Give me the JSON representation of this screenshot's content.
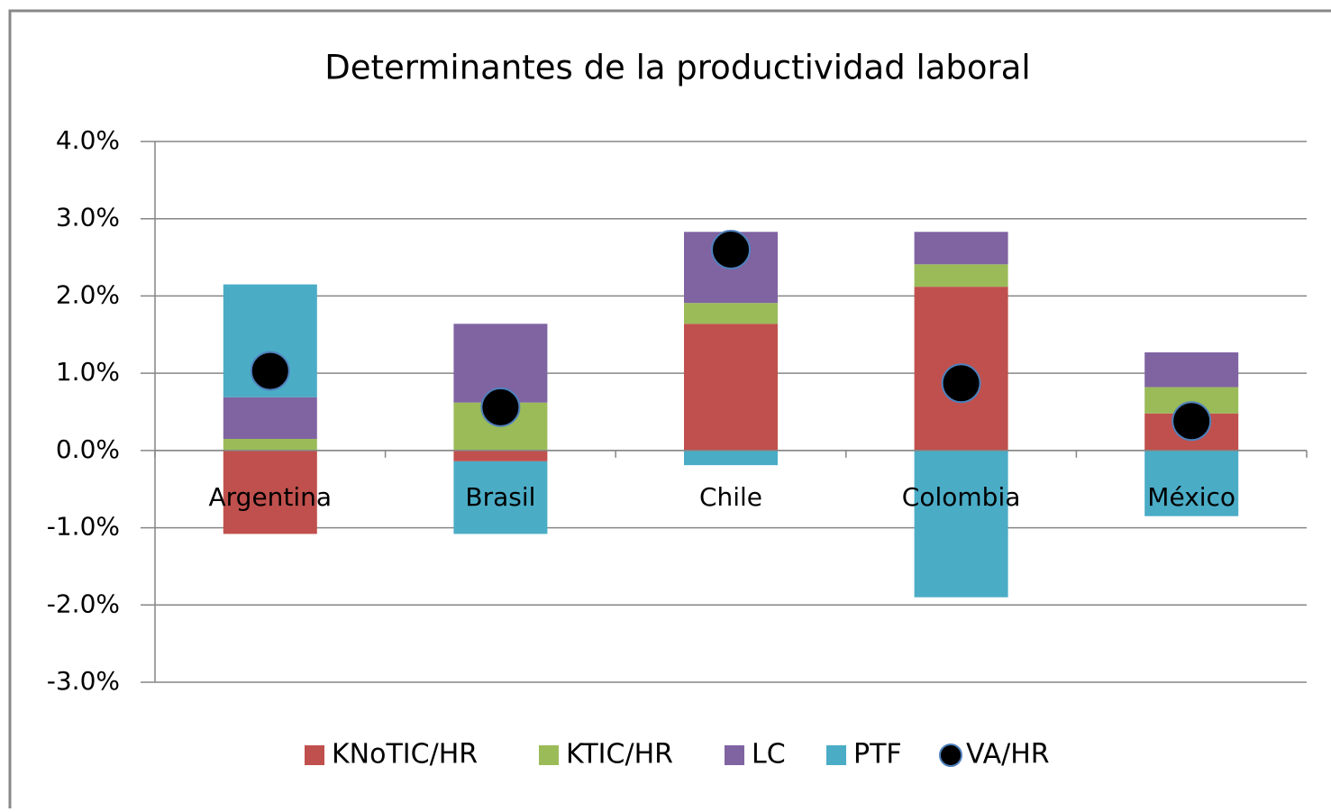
{
  "chart_data": {
    "type": "bar",
    "stacked": true,
    "title": "Determinantes de la productividad laboral",
    "categories": [
      "Argentina",
      "Brasil",
      "Chile",
      "Colombia",
      "México"
    ],
    "series": [
      {
        "name": "KNoTIC/HR",
        "color": "#c0504d",
        "values": [
          -1.08,
          -0.14,
          1.64,
          2.12,
          0.48
        ]
      },
      {
        "name": "KTIC/HR",
        "color": "#9bbb59",
        "values": [
          0.15,
          0.62,
          0.27,
          0.29,
          0.34
        ]
      },
      {
        "name": "LC",
        "color": "#8064a2",
        "values": [
          0.54,
          1.02,
          0.92,
          0.42,
          0.45
        ]
      },
      {
        "name": "PTF",
        "color": "#4bacc6",
        "values": [
          1.46,
          -0.94,
          -0.19,
          -1.9,
          -0.85
        ]
      },
      {
        "name": "VA/HR",
        "color": "#000000",
        "type": "scatter",
        "values": [
          1.03,
          0.56,
          2.6,
          0.87,
          0.38
        ]
      }
    ],
    "ylim": [
      -3,
      4
    ],
    "yticks": [
      {
        "value": -3,
        "label": "-3.0%"
      },
      {
        "value": -2,
        "label": "-2.0%"
      },
      {
        "value": -1,
        "label": "-1.0%"
      },
      {
        "value": 0,
        "label": "0.0%"
      },
      {
        "value": 1,
        "label": "1.0%"
      },
      {
        "value": 2,
        "label": "2.0%"
      },
      {
        "value": 3,
        "label": "3.0%"
      },
      {
        "value": 4,
        "label": "4.0%"
      }
    ],
    "grid": true,
    "legend": "bottom"
  }
}
